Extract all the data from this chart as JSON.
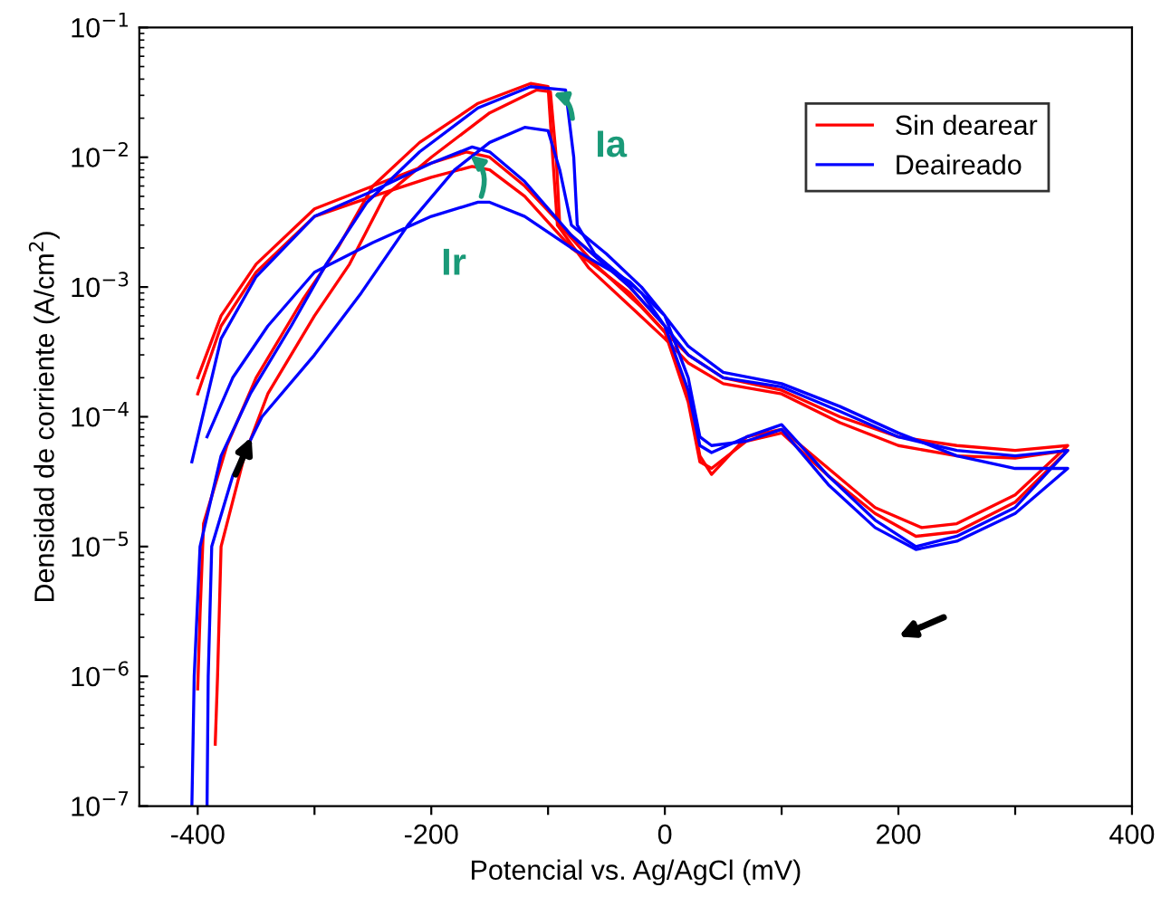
{
  "chart_data": {
    "type": "line",
    "xlabel": "Potencial vs. Ag/AgCl (mV)",
    "ylabel": "Densidad de corriente (A/cm$^{2}$)",
    "log": "y",
    "xlim": [
      -450,
      400
    ],
    "ylim": [
      1e-07,
      0.1
    ],
    "xticks": [
      -400,
      {
        "value": -300,
        "label": null
      },
      -200,
      {
        "value": -100,
        "label": null
      },
      0,
      {
        "value": 100,
        "label": null
      },
      200,
      {
        "value": 300,
        "label": null
      },
      400
    ],
    "yticks": [
      {
        "value": 1e-07,
        "label": "10$^{−7}$"
      },
      {
        "value": 1e-06,
        "label": "10$^{−6}$"
      },
      {
        "value": 1e-05,
        "label": "10$^{−5}$"
      },
      {
        "value": 0.0001,
        "label": "10$^{−4}$"
      },
      {
        "value": 0.001,
        "label": "10$^{−3}$"
      },
      {
        "value": 0.01,
        "label": "10$^{−2}$"
      },
      {
        "value": 0.1,
        "label": "10$^{−1}$"
      }
    ],
    "grid": false,
    "legend": "top right",
    "marker": "none",
    "line_style": "solid",
    "annotations": [
      {
        "text": "Ia",
        "x": -100,
        "y": 0.032
      },
      {
        "text": "Ir",
        "x": -170,
        "y": 0.011
      }
    ],
    "series": [
      {
        "name": "Sin dearear",
        "color": "#ff0000",
        "x": [
          -385,
          -383,
          -380,
          -360,
          -340,
          -300,
          -270,
          -240,
          -200,
          -150,
          -110,
          -98,
          -93,
          -90,
          -60,
          -20,
          0,
          20,
          50,
          100,
          150,
          200,
          250,
          300,
          345,
          300,
          250,
          220,
          180,
          140,
          100,
          70,
          40,
          30,
          20,
          0,
          -30,
          -80,
          -120,
          -150,
          -170,
          -200,
          -250,
          -300,
          -350,
          -380,
          -400
        ],
        "values": [
          3e-07,
          1e-06,
          1e-05,
          5e-05,
          0.00015,
          0.0006,
          0.0015,
          0.005,
          0.01,
          0.022,
          0.033,
          0.032,
          0.01,
          0.003,
          0.0015,
          0.0007,
          0.00045,
          0.0003,
          0.0002,
          0.00016,
          0.0001,
          7e-05,
          6e-05,
          5.5e-05,
          6e-05,
          2.5e-05,
          1.5e-05,
          1.4e-05,
          2e-05,
          4e-05,
          8e-05,
          7e-05,
          3.6e-05,
          5e-05,
          0.00015,
          0.0005,
          0.001,
          0.0025,
          0.006,
          0.01,
          0.011,
          0.009,
          0.006,
          0.004,
          0.0015,
          0.0006,
          0.0002
        ]
      },
      {
        "color": "#ff0000",
        "x": [
          -400,
          -398,
          -395,
          -375,
          -350,
          -310,
          -280,
          -250,
          -210,
          -160,
          -115,
          -100,
          -96,
          -92,
          -65,
          -25,
          0,
          20,
          50,
          100,
          150,
          200,
          250,
          300,
          345,
          300,
          250,
          215,
          180,
          140,
          100,
          70,
          40,
          30,
          20,
          0,
          -30,
          -80,
          -120,
          -150,
          -165,
          -200,
          -250,
          -300,
          -350,
          -380,
          -400
        ],
        "values": [
          8e-07,
          3e-06,
          1.5e-05,
          6e-05,
          0.0002,
          0.0008,
          0.002,
          0.006,
          0.013,
          0.026,
          0.037,
          0.035,
          0.01,
          0.003,
          0.0014,
          0.00065,
          0.0004,
          0.00026,
          0.00018,
          0.00015,
          9e-05,
          6e-05,
          5e-05,
          4.8e-05,
          5.5e-05,
          2.2e-05,
          1.3e-05,
          1.2e-05,
          1.8e-05,
          3.5e-05,
          7.5e-05,
          6.5e-05,
          4e-05,
          4.5e-05,
          0.00013,
          0.00045,
          0.0009,
          0.002,
          0.005,
          0.008,
          0.0085,
          0.007,
          0.005,
          0.0035,
          0.0013,
          0.0005,
          0.00015
        ]
      },
      {
        "name": "Deaireado",
        "color": "#0000ff",
        "x": [
          -405,
          -403,
          -398,
          -380,
          -355,
          -320,
          -290,
          -255,
          -210,
          -160,
          -115,
          -85,
          -78,
          -75,
          -60,
          -20,
          0,
          20,
          50,
          100,
          150,
          200,
          250,
          300,
          345,
          300,
          250,
          215,
          180,
          140,
          100,
          70,
          40,
          30,
          20,
          0,
          -30,
          -80,
          -120,
          -150,
          -165,
          -200,
          -250,
          -300,
          -350,
          -380,
          -405
        ],
        "values": [
          1e-07,
          1e-06,
          1e-05,
          5e-05,
          0.00015,
          0.0005,
          0.0015,
          0.0045,
          0.011,
          0.024,
          0.035,
          0.033,
          0.01,
          0.003,
          0.0018,
          0.0009,
          0.0005,
          0.0003,
          0.0002,
          0.00017,
          0.00011,
          7e-05,
          5.5e-05,
          5e-05,
          5.5e-05,
          2e-05,
          1.2e-05,
          1e-05,
          1.6e-05,
          3.5e-05,
          8.7e-05,
          7e-05,
          5.3e-05,
          6e-05,
          0.00016,
          0.0005,
          0.001,
          0.0025,
          0.0065,
          0.011,
          0.012,
          0.009,
          0.0055,
          0.0035,
          0.0012,
          0.0004,
          4.5e-05
        ]
      },
      {
        "color": "#0000ff",
        "x": [
          -392,
          -391,
          -388,
          -370,
          -345,
          -300,
          -260,
          -220,
          -180,
          -150,
          -120,
          -100,
          -90,
          -80,
          -50,
          -20,
          0,
          20,
          50,
          100,
          150,
          200,
          250,
          300,
          345,
          300,
          250,
          215,
          180,
          140,
          100,
          70,
          40,
          30,
          20,
          0,
          -30,
          -80,
          -120,
          -150,
          -160,
          -200,
          -250,
          -300,
          -340,
          -370,
          -392
        ],
        "values": [
          1e-07,
          1e-06,
          1e-05,
          3.5e-05,
          0.0001,
          0.0003,
          0.0009,
          0.003,
          0.008,
          0.013,
          0.017,
          0.016,
          0.008,
          0.003,
          0.0018,
          0.001,
          0.0006,
          0.00035,
          0.00022,
          0.00018,
          0.00012,
          7.5e-05,
          5e-05,
          4e-05,
          4e-05,
          1.8e-05,
          1.1e-05,
          9.5e-06,
          1.4e-05,
          3e-05,
          8e-05,
          6.5e-05,
          6e-05,
          7e-05,
          0.0002,
          0.0006,
          0.0011,
          0.002,
          0.0035,
          0.0045,
          0.0045,
          0.0035,
          0.0022,
          0.0013,
          0.0005,
          0.0002,
          7e-05
        ]
      }
    ]
  }
}
